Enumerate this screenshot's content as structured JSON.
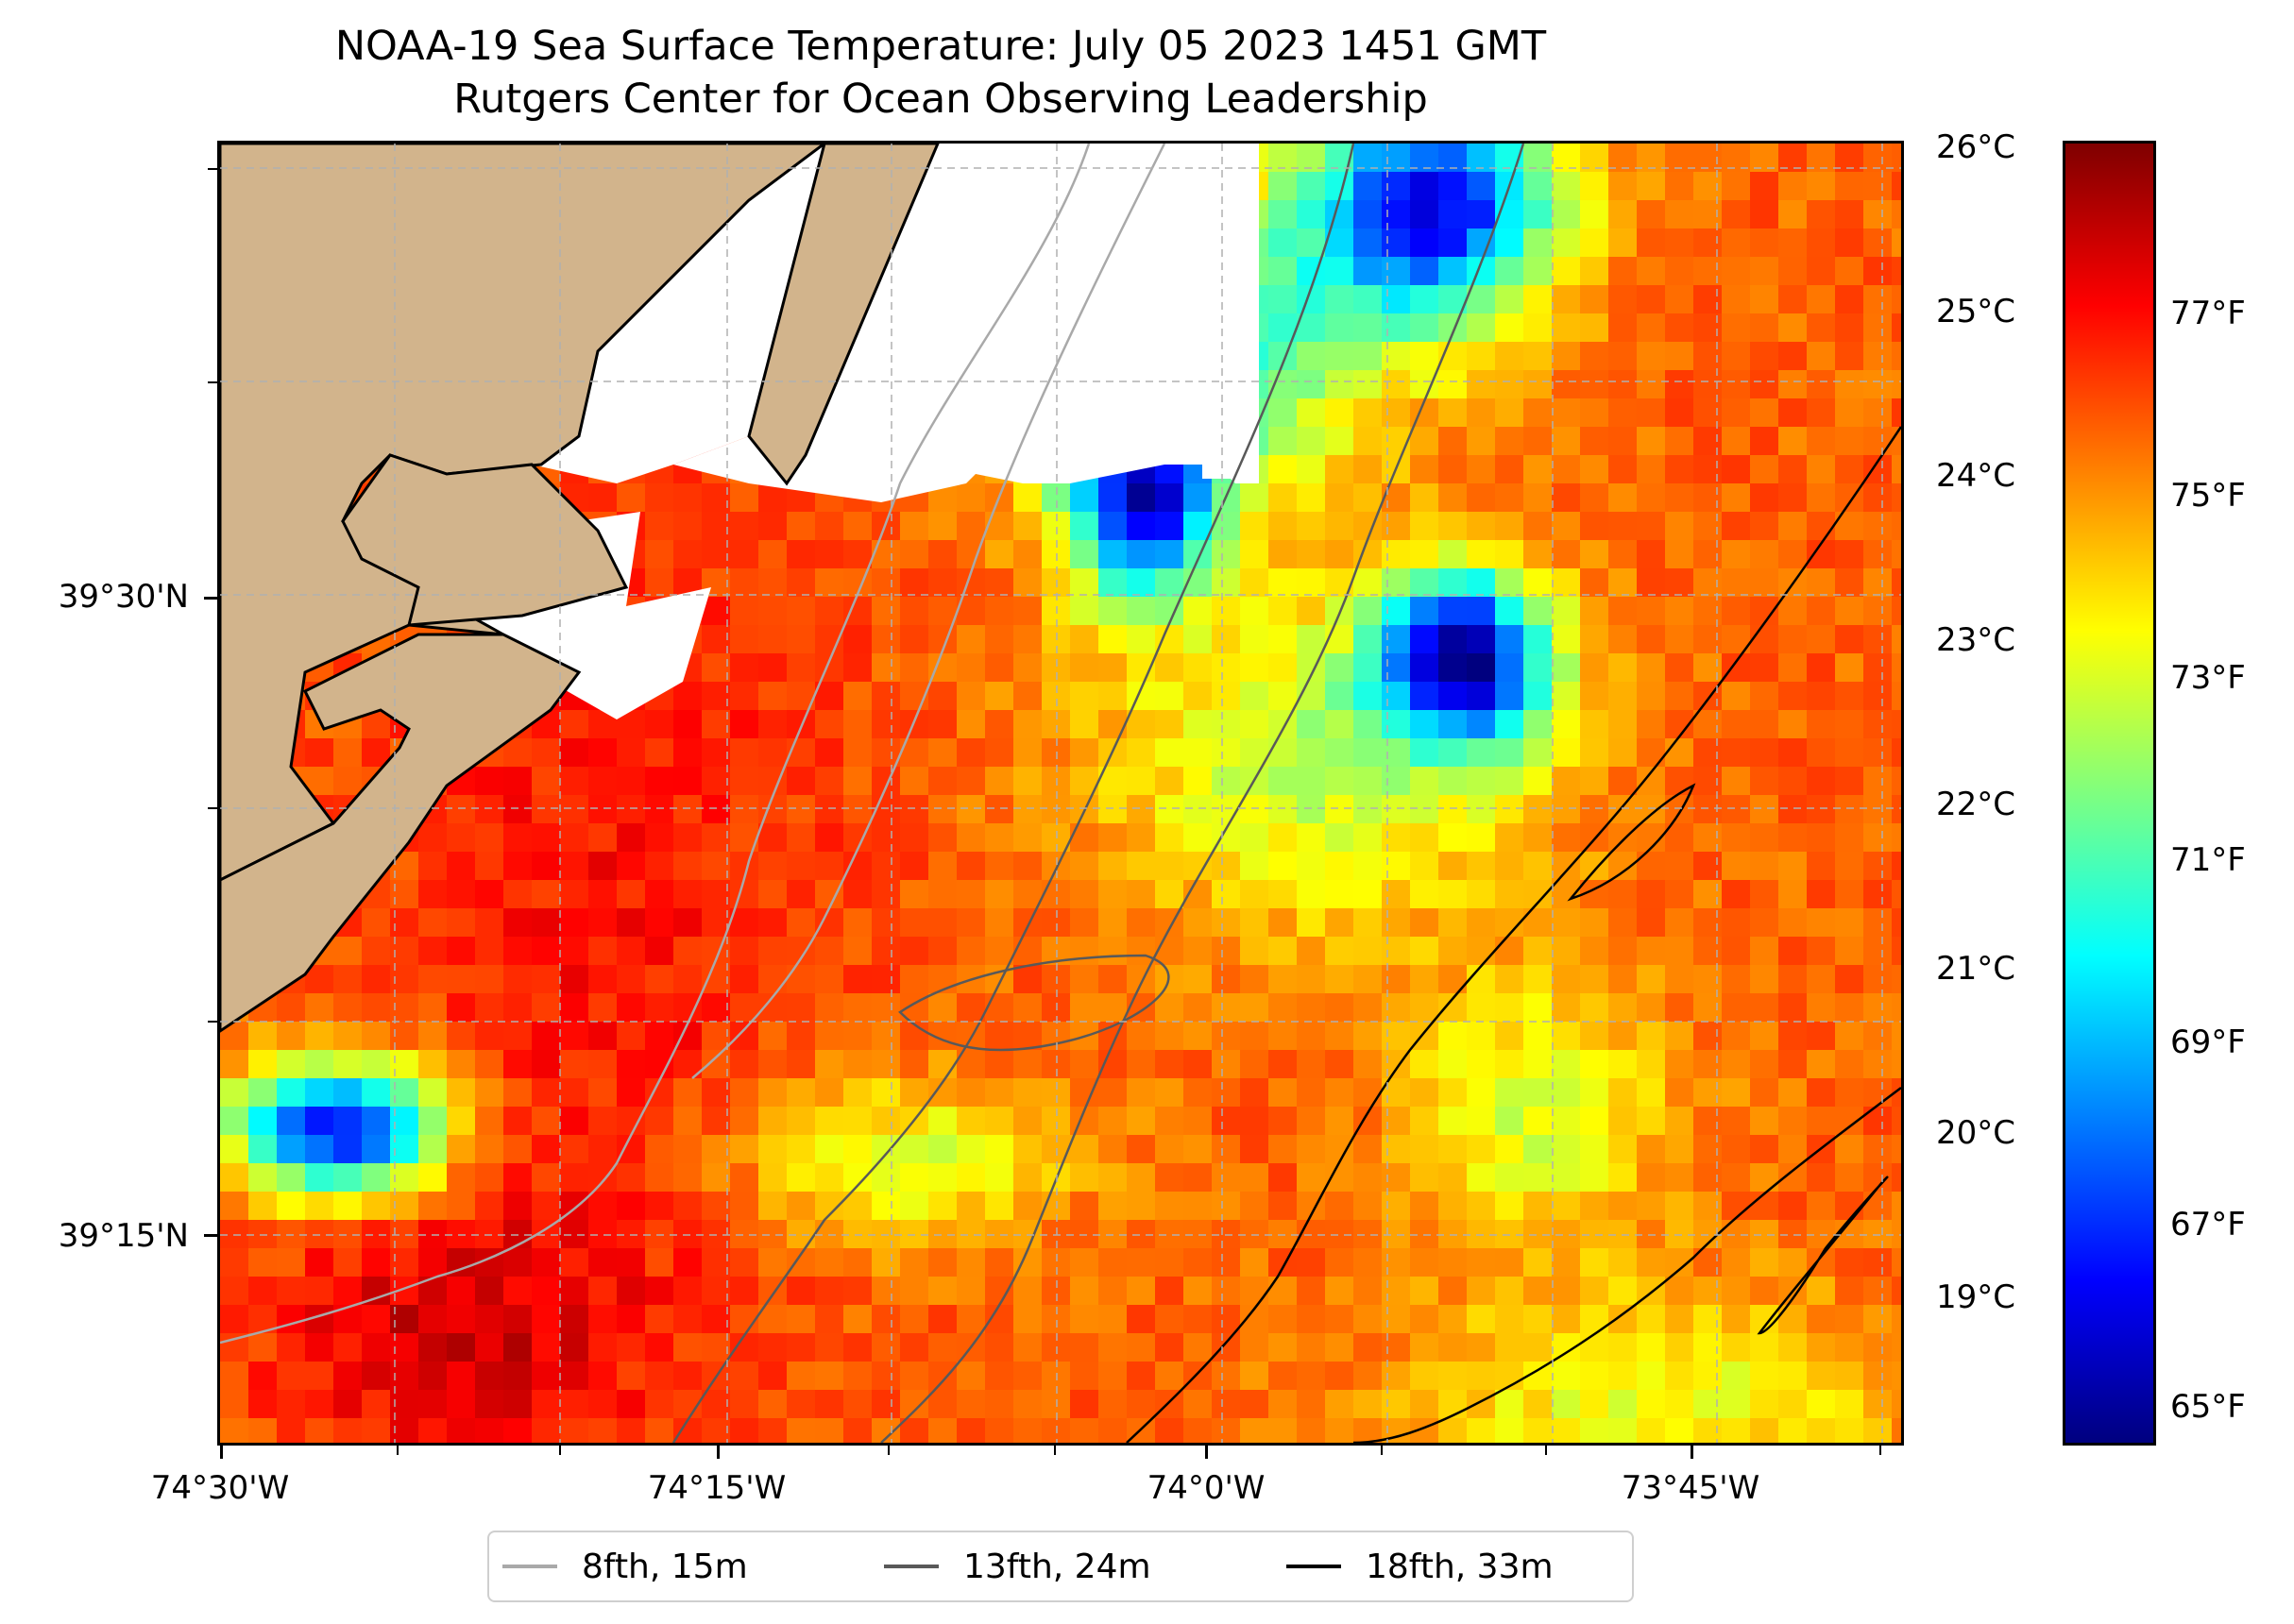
{
  "title": "NOAA-19 Sea Surface Temperature: July 05 2023 1451 GMT",
  "subtitle": "Rutgers Center for Ocean Observing Leadership",
  "lat_labels": [
    "39°30'N",
    "39°15'N"
  ],
  "lon_labels": [
    "74°30'W",
    "74°15'W",
    "74°0'W",
    "73°45'W"
  ],
  "colorbar": {
    "celsius_labels": [
      "26°C",
      "25°C",
      "24°C",
      "23°C",
      "22°C",
      "21°C",
      "20°C",
      "19°C"
    ],
    "fahrenheit_labels": [
      "77°F",
      "75°F",
      "73°F",
      "71°F",
      "69°F",
      "67°F",
      "65°F"
    ],
    "colormap": [
      "#00007f",
      "#0000ff",
      "#007fff",
      "#00ffff",
      "#7fff7f",
      "#ffff00",
      "#ff7f00",
      "#ff0000",
      "#7f0000"
    ]
  },
  "legend": [
    {
      "label": "8fth, 15m",
      "color": "#a9a9a9"
    },
    {
      "label": "13fth, 24m",
      "color": "#595959"
    },
    {
      "label": "18fth, 33m",
      "color": "#000000"
    }
  ],
  "colors": {
    "land": "#d2b48c",
    "gridline": "#b0b0b0"
  }
}
